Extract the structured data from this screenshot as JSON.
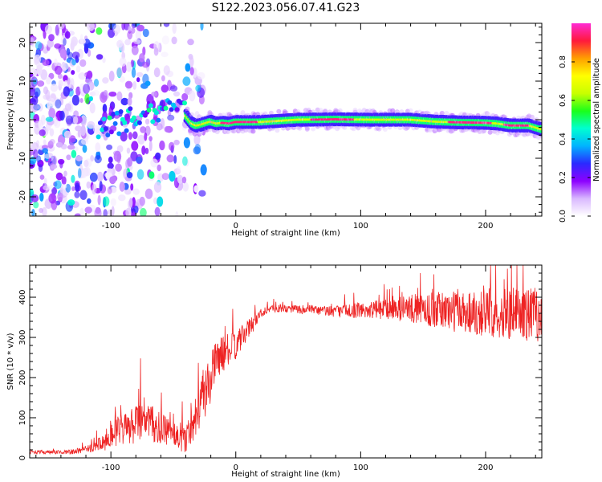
{
  "figure": {
    "title": "S122.2023.056.07.41.G23"
  },
  "chart_data": [
    {
      "type": "heatmap",
      "xlabel": "Height of straight line (km)",
      "ylabel": "Frequency (Hz)",
      "xlim": [
        -165,
        245
      ],
      "ylim": [
        -25,
        25
      ],
      "xticks": [
        -100,
        0,
        100,
        200
      ],
      "yticks": [
        -20,
        -10,
        0,
        10,
        20
      ],
      "colorbar": {
        "label": "Normalized spectral amplitude",
        "range": [
          0,
          1
        ],
        "ticks": [
          0.0,
          0.2,
          0.4,
          0.6,
          0.8
        ],
        "colormap": [
          "#ffffff",
          "#d9b8ff",
          "#8c00ff",
          "#2a2aff",
          "#00b4ff",
          "#00ffd0",
          "#1aff1a",
          "#c8ff00",
          "#ffff00",
          "#ff9f00",
          "#ff1a3c",
          "#ff2ad4"
        ]
      },
      "ridge": {
        "description_x": [
          -50,
          -45,
          -40,
          -35,
          -32,
          -30,
          -25,
          -20,
          -15,
          -10,
          -5,
          0,
          20,
          50,
          80,
          110,
          140,
          160,
          180,
          200,
          210,
          220,
          235,
          245
        ],
        "frequency": [
          4,
          3,
          1,
          -1,
          -1.5,
          -1.5,
          -1,
          -0.5,
          -1,
          -0.8,
          -1,
          -0.6,
          -0.6,
          0,
          0.1,
          0,
          0,
          -0.5,
          -0.7,
          -0.8,
          -1,
          -1.5,
          -1.5,
          -2.5
        ]
      }
    },
    {
      "type": "line",
      "xlabel": "Height of straight line (km)",
      "ylabel": "SNR (10 * v/v)",
      "xlim": [
        -165,
        245
      ],
      "ylim": [
        0,
        480
      ],
      "xticks": [
        -100,
        0,
        100,
        200
      ],
      "yticks": [
        0,
        100,
        200,
        300,
        400
      ],
      "series": [
        {
          "color": "#ee2222",
          "x": [
            -165,
            -150,
            -130,
            -115,
            -105,
            -100,
            -90,
            -80,
            -75,
            -70,
            -60,
            -50,
            -40,
            -35,
            -30,
            -25,
            -20,
            -15,
            -10,
            -5,
            0,
            5,
            10,
            15,
            20,
            25,
            30,
            40,
            60,
            80,
            100,
            120,
            140,
            160,
            180,
            200,
            220,
            245
          ],
          "y": [
            15,
            14,
            15,
            25,
            40,
            60,
            70,
            80,
            110,
            90,
            70,
            60,
            50,
            80,
            130,
            160,
            200,
            250,
            260,
            270,
            280,
            300,
            320,
            340,
            360,
            370,
            372,
            372,
            368,
            365,
            368,
            370,
            372,
            368,
            365,
            362,
            360,
            358
          ],
          "spread": [
            5,
            5,
            6,
            10,
            25,
            35,
            40,
            50,
            60,
            50,
            40,
            35,
            40,
            45,
            60,
            70,
            60,
            50,
            45,
            40,
            35,
            30,
            25,
            20,
            12,
            10,
            10,
            10,
            12,
            15,
            20,
            25,
            35,
            45,
            55,
            60,
            65,
            70
          ]
        }
      ]
    }
  ]
}
